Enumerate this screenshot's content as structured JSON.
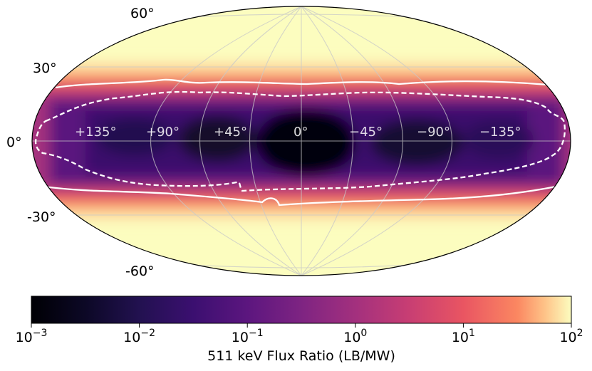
{
  "chart_data": {
    "type": "heatmap",
    "projection": "mollweide",
    "colormap": "magma",
    "scale": "log",
    "grid": true,
    "latitude_labels": [
      "60°",
      "30°",
      "0°",
      "-30°",
      "-60°"
    ],
    "longitude_labels": [
      "+135°",
      "+90°",
      "+45°",
      "0°",
      "−45°",
      "−90°",
      "−135°"
    ],
    "colorbar": {
      "orientation": "horizontal",
      "range": [
        0.001,
        100
      ],
      "ticks": [
        {
          "base": "10",
          "exp": "−3",
          "value": 0.001
        },
        {
          "base": "10",
          "exp": "−2",
          "value": 0.01
        },
        {
          "base": "10",
          "exp": "−1",
          "value": 0.1
        },
        {
          "base": "10",
          "exp": "0",
          "value": 1
        },
        {
          "base": "10",
          "exp": "1",
          "value": 10
        },
        {
          "base": "10",
          "exp": "2",
          "value": 100
        }
      ],
      "label": "511 keV Flux Ratio (LB/MW)"
    },
    "contours": [
      {
        "style": "solid",
        "color": "#ffffff",
        "approx_latitude_deg": 15
      },
      {
        "style": "dashed",
        "color": "#ffffff",
        "approx_latitude_deg": 10
      }
    ],
    "colors": {
      "min": "#000004",
      "low": "#3b0f70",
      "mid": "#8c2981",
      "mid_high": "#de4968",
      "high": "#fe9f6d",
      "max": "#fcfdbf"
    }
  }
}
